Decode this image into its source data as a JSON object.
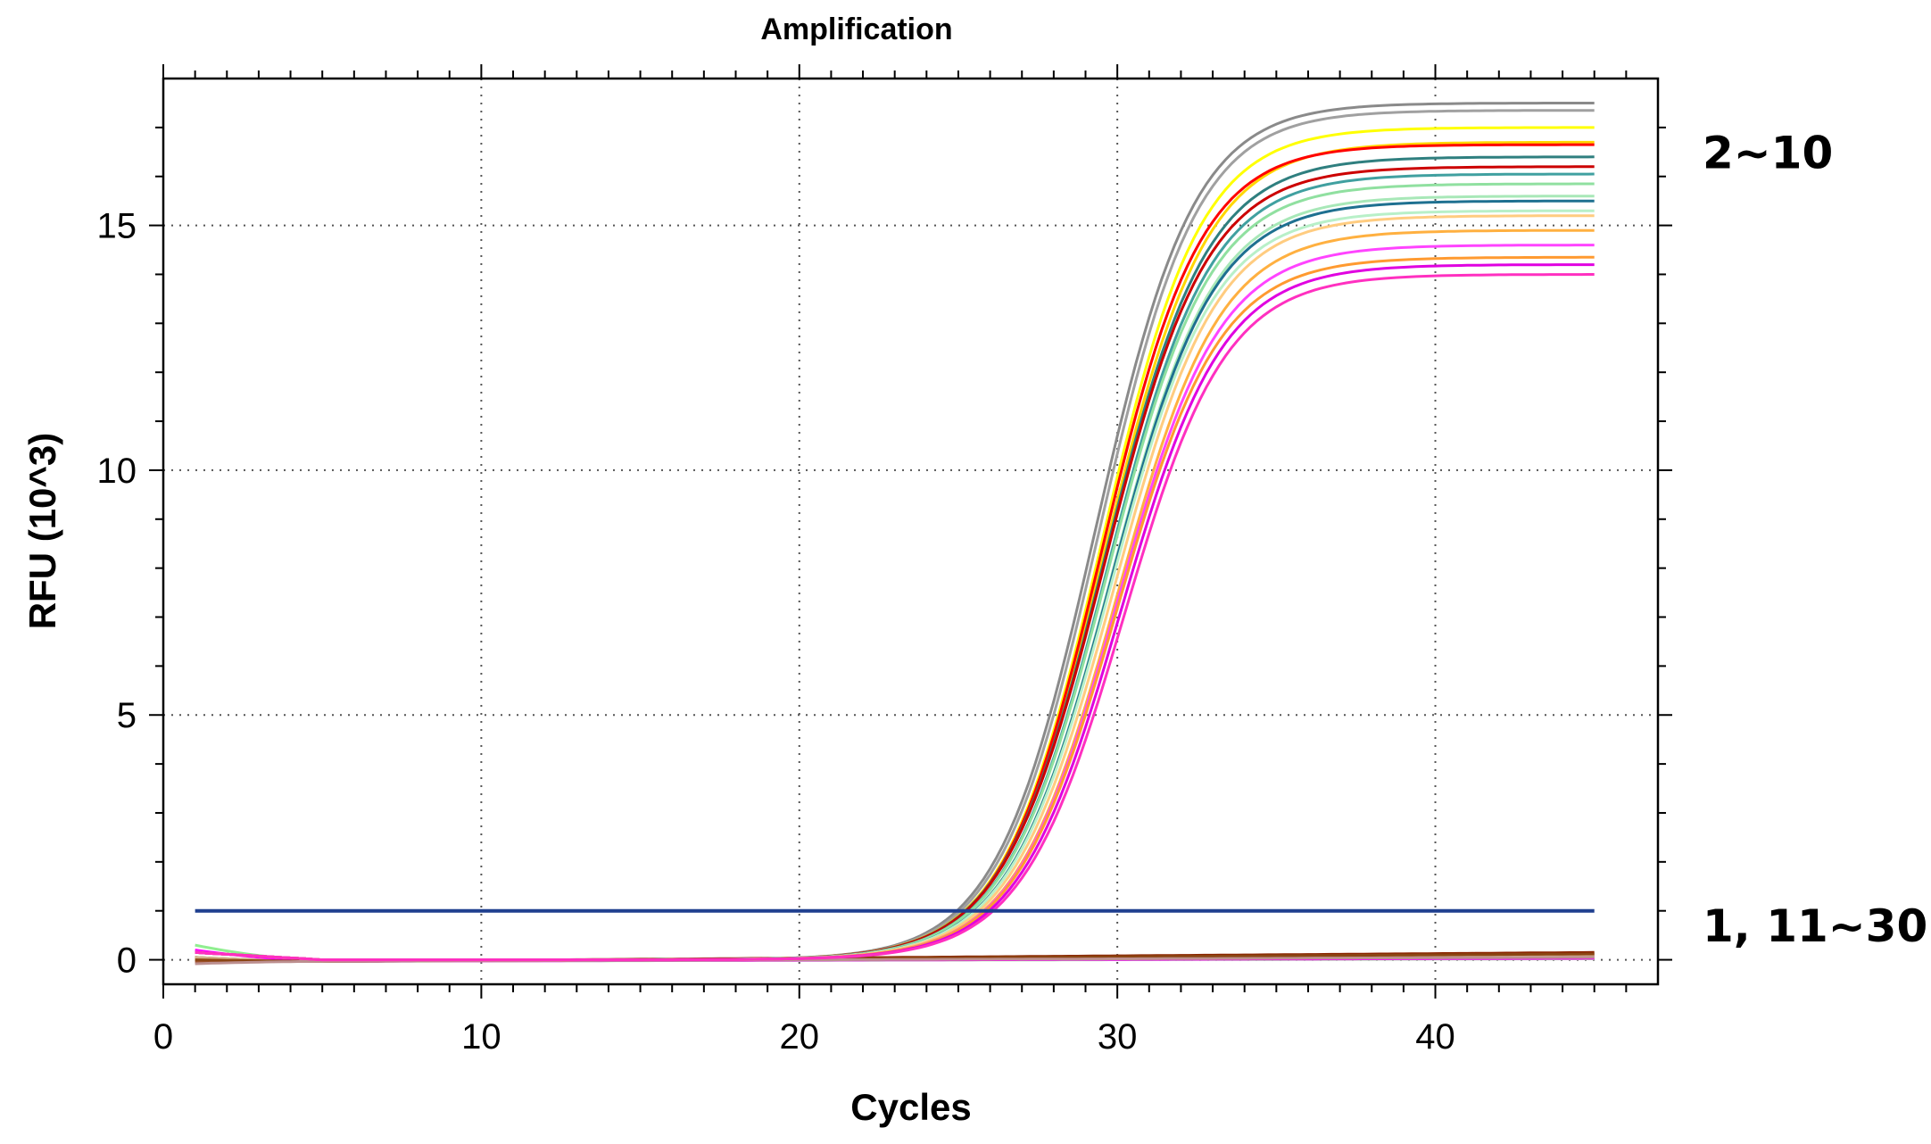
{
  "chart_data": {
    "type": "line",
    "title": "Amplification",
    "xlabel": "Cycles",
    "ylabel": "RFU (10^3)",
    "xlim": [
      0,
      47
    ],
    "ylim": [
      -0.5,
      18
    ],
    "xticks": [
      0,
      10,
      20,
      30,
      40
    ],
    "yticks": [
      0,
      5,
      10,
      15
    ],
    "grid": "dotted",
    "threshold": {
      "value": 1.0,
      "color": "#1f3f8f",
      "x_range": [
        1,
        45
      ]
    },
    "annotations": [
      {
        "text": "2~10",
        "y": 16.5
      },
      {
        "text": "1, 11~30",
        "y": 0.7
      }
    ],
    "amplified_curves": [
      {
        "color": "#8a8a8a",
        "plateau": 17.5,
        "midpoint": 29.3,
        "slope": 1.55
      },
      {
        "color": "#a0a0a0",
        "plateau": 17.35,
        "midpoint": 29.4,
        "slope": 1.55
      },
      {
        "color": "#ffff00",
        "plateau": 17.0,
        "midpoint": 29.5,
        "slope": 1.55
      },
      {
        "color": "#ffd700",
        "plateau": 16.7,
        "midpoint": 29.6,
        "slope": 1.6
      },
      {
        "color": "#ff0000",
        "plateau": 16.65,
        "midpoint": 29.5,
        "slope": 1.55
      },
      {
        "color": "#2f7f7f",
        "plateau": 16.4,
        "midpoint": 29.6,
        "slope": 1.6
      },
      {
        "color": "#cc0000",
        "plateau": 16.2,
        "midpoint": 29.6,
        "slope": 1.6
      },
      {
        "color": "#40a0a0",
        "plateau": 16.05,
        "midpoint": 29.7,
        "slope": 1.6
      },
      {
        "color": "#90e0a0",
        "plateau": 15.85,
        "midpoint": 29.7,
        "slope": 1.6
      },
      {
        "color": "#a8e8b8",
        "plateau": 15.6,
        "midpoint": 29.8,
        "slope": 1.6
      },
      {
        "color": "#1e7090",
        "plateau": 15.5,
        "midpoint": 29.8,
        "slope": 1.6
      },
      {
        "color": "#b8f0c8",
        "plateau": 15.3,
        "midpoint": 29.8,
        "slope": 1.6
      },
      {
        "color": "#ffcc80",
        "plateau": 15.2,
        "midpoint": 29.9,
        "slope": 1.6
      },
      {
        "color": "#ffb040",
        "plateau": 14.9,
        "midpoint": 30.0,
        "slope": 1.6
      },
      {
        "color": "#ff44ff",
        "plateau": 14.6,
        "midpoint": 30.0,
        "slope": 1.6
      },
      {
        "color": "#ff9a30",
        "plateau": 14.35,
        "midpoint": 30.0,
        "slope": 1.6
      },
      {
        "color": "#e000e0",
        "plateau": 14.2,
        "midpoint": 30.1,
        "slope": 1.6
      },
      {
        "color": "#ff30c0",
        "plateau": 14.0,
        "midpoint": 30.2,
        "slope": 1.6
      }
    ],
    "flat_curves": [
      {
        "color": "#8b2500",
        "start": 0.05,
        "end": 0.15
      },
      {
        "color": "#c8a070",
        "start": 0.0,
        "end": 0.05
      },
      {
        "color": "#a0522d",
        "start": -0.05,
        "end": 0.1
      },
      {
        "color": "#d2b48c",
        "start": 0.05,
        "end": 0.08
      },
      {
        "color": "#90ee90",
        "start": 0.3,
        "end": 0.02
      },
      {
        "color": "#ff00ff",
        "start": 0.2,
        "end": 0.03
      },
      {
        "color": "#8b4513",
        "start": 0.0,
        "end": 0.12
      },
      {
        "color": "#bc8f8f",
        "start": -0.08,
        "end": 0.05
      }
    ]
  }
}
